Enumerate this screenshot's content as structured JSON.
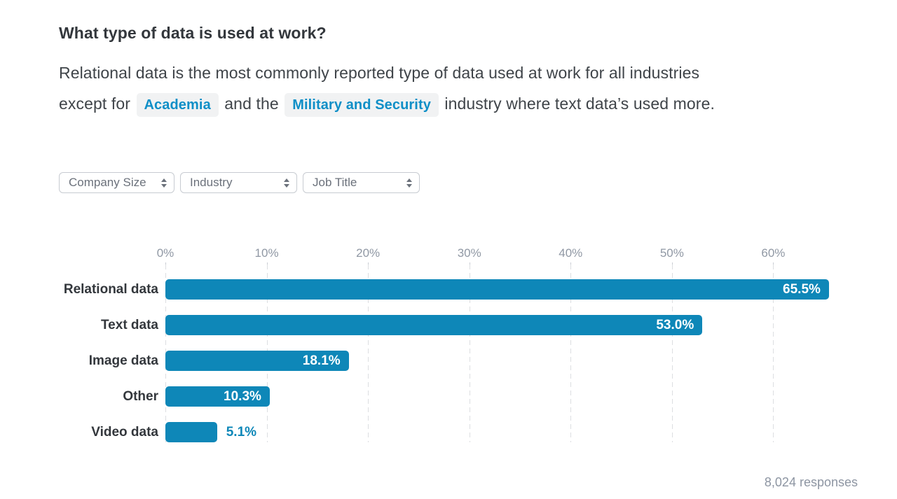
{
  "colors": {
    "accent_blue": "#0e87b8",
    "chip_text": "#0f8fc7",
    "chip_bg": "#f1f2f3",
    "text_dark": "#33373c",
    "text_muted": "#8d95a2"
  },
  "header": {
    "title": "What type of data is used at work?",
    "description_parts": [
      {
        "type": "text",
        "text": "Relational data is the most commonly reported type of data used at work for all industries except for "
      },
      {
        "type": "chip",
        "text": "Academia"
      },
      {
        "type": "text",
        "text": " and the "
      },
      {
        "type": "chip",
        "text": "Military and Security"
      },
      {
        "type": "text",
        "text": " industry where text data’s used more."
      }
    ]
  },
  "filters": [
    {
      "label": "Company Size",
      "icon": "updown-arrows-icon"
    },
    {
      "label": "Industry",
      "icon": "updown-arrows-icon"
    },
    {
      "label": "Job Title",
      "icon": "updown-arrows-icon"
    }
  ],
  "chart_data": {
    "type": "bar",
    "orientation": "horizontal",
    "title": "What type of data is used at work?",
    "categories": [
      "Relational data",
      "Text data",
      "Image data",
      "Other",
      "Video data"
    ],
    "values": [
      65.5,
      53.0,
      18.1,
      10.3,
      5.1
    ],
    "value_labels": [
      "65.5%",
      "53.0%",
      "18.1%",
      "10.3%",
      "5.1%"
    ],
    "x_tick_labels": [
      "0%",
      "10%",
      "20%",
      "30%",
      "40%",
      "50%",
      "60%"
    ],
    "x_tick_values": [
      0,
      10,
      20,
      30,
      40,
      50,
      60
    ],
    "xlim": [
      0,
      66
    ],
    "xlabel": "",
    "ylabel": "",
    "grid": "vertical-dashed",
    "legend": "none",
    "bar_color": "#0e87b8",
    "value_label_inside_color": "#ffffff",
    "value_label_outside_color": "#0e87b8"
  },
  "footer": {
    "responses_label": "8,024 responses"
  }
}
